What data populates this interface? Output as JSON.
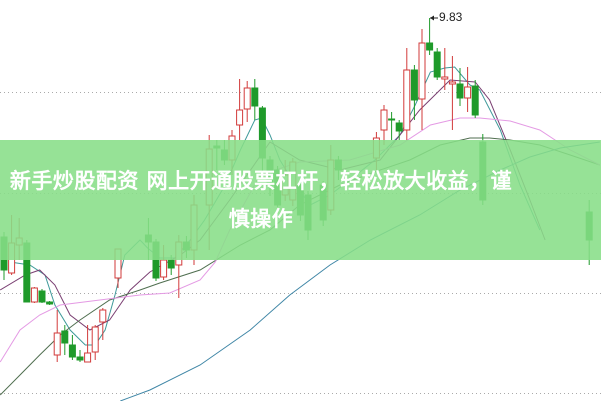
{
  "banner": {
    "text": "新手炒股配资 网上开通股票杠杆，轻松放大收益，谨慎操作"
  },
  "chart_data": {
    "type": "candlestick",
    "title": "",
    "xlabel": "",
    "ylabel": "",
    "grid": "horizontal dotted",
    "max_label": "9.83",
    "colors": {
      "up": "#d23a3a",
      "down": "#1f9a2a",
      "ma5": "#3f9a9a",
      "ma10": "#7a3f72",
      "ma20": "#4f6e4f",
      "ma30": "#e49ae4",
      "ma60": "#3f86a6",
      "banner": "#88de88"
    },
    "candles_ohlc": [
      [
        0,
        7.64,
        7.69,
        7.21,
        7.31
      ],
      [
        1,
        7.28,
        7.86,
        7.26,
        7.58
      ],
      [
        2,
        7.56,
        7.83,
        7.41,
        7.63
      ],
      [
        3,
        7.58,
        7.61,
        6.99,
        6.99
      ],
      [
        4,
        6.99,
        7.14,
        6.98,
        7.13
      ],
      [
        5,
        7.1,
        7.12,
        6.98,
        6.99
      ],
      [
        6,
        6.99,
        7.0,
        6.96,
        6.97
      ],
      [
        7,
        6.46,
        6.91,
        6.39,
        6.68
      ],
      [
        8,
        6.7,
        6.76,
        6.46,
        6.58
      ],
      [
        9,
        6.56,
        6.66,
        6.41,
        6.44
      ],
      [
        10,
        6.44,
        6.51,
        6.39,
        6.41
      ],
      [
        11,
        6.39,
        6.76,
        6.39,
        6.48
      ],
      [
        12,
        6.49,
        6.76,
        6.41,
        6.74
      ],
      [
        13,
        6.79,
        6.93,
        6.61,
        6.91
      ],
      [
        15,
        7.23,
        7.52,
        7.13,
        7.52
      ],
      [
        19,
        7.66,
        7.83,
        7.41,
        7.59
      ],
      [
        20,
        7.59,
        7.62,
        7.2,
        7.23
      ],
      [
        21,
        7.24,
        7.56,
        7.21,
        7.41
      ],
      [
        22,
        7.41,
        7.46,
        7.26,
        7.33
      ],
      [
        23,
        7.36,
        7.66,
        7.03,
        7.59
      ],
      [
        24,
        7.59,
        7.65,
        7.43,
        7.51
      ],
      [
        25,
        7.51,
        8.06,
        7.36,
        7.96
      ],
      [
        27,
        7.96,
        8.66,
        7.51,
        8.52
      ],
      [
        28,
        8.55,
        8.61,
        8.31,
        8.53
      ],
      [
        29,
        8.51,
        8.61,
        8.36,
        8.41
      ],
      [
        30,
        8.41,
        8.71,
        8.26,
        8.65
      ],
      [
        31,
        8.76,
        9.22,
        8.61,
        8.91
      ],
      [
        32,
        8.92,
        9.2,
        8.79,
        9.13
      ],
      [
        33,
        9.13,
        9.22,
        8.81,
        8.95
      ],
      [
        34,
        8.93,
        8.95,
        8.26,
        8.43
      ],
      [
        35,
        8.41,
        8.45,
        8.05,
        8.16
      ],
      [
        36,
        8.31,
        8.35,
        7.9,
        7.96
      ],
      [
        37,
        8.06,
        8.41,
        8.0,
        8.26
      ],
      [
        38,
        8.01,
        8.43,
        7.95,
        8.39
      ],
      [
        39,
        8.16,
        8.26,
        7.8,
        7.86
      ],
      [
        40,
        8.06,
        8.1,
        7.61,
        7.71
      ],
      [
        42,
        8.16,
        8.2,
        7.75,
        7.81
      ],
      [
        43,
        7.91,
        8.56,
        7.86,
        8.41
      ],
      [
        44,
        8.41,
        8.45,
        8.21,
        8.31
      ],
      [
        49,
        8.43,
        8.69,
        8.31,
        8.63
      ],
      [
        50,
        8.71,
        8.96,
        8.56,
        8.91
      ],
      [
        51,
        8.82,
        8.89,
        8.61,
        8.81
      ],
      [
        52,
        8.78,
        8.81,
        8.61,
        8.7
      ],
      [
        53,
        8.71,
        9.53,
        8.61,
        9.31
      ],
      [
        54,
        9.31,
        9.36,
        8.81,
        9.01
      ],
      [
        55,
        9.02,
        9.72,
        8.71,
        9.58
      ],
      [
        56,
        9.58,
        9.83,
        9.46,
        9.51
      ],
      [
        57,
        9.49,
        9.53,
        9.21,
        9.24
      ],
      [
        58,
        9.22,
        9.53,
        9.11,
        9.24
      ],
      [
        59,
        9.17,
        9.45,
        8.71,
        9.19
      ],
      [
        60,
        9.17,
        9.33,
        8.95,
        9.03
      ],
      [
        61,
        9.03,
        9.34,
        8.89,
        9.14
      ],
      [
        62,
        9.15,
        9.21,
        8.83,
        8.86
      ],
      [
        63,
        8.59,
        8.67,
        7.96,
        8.01
      ],
      [
        77,
        7.89,
        8.01,
        7.36,
        7.61
      ]
    ],
    "moving_averages": [
      {
        "key": "ma5",
        "points": [
          [
            0.8,
            7.39
          ],
          [
            3.4,
            7.36
          ],
          [
            5.4,
            7.26
          ],
          [
            6.7,
            6.96
          ],
          [
            8.7,
            6.71
          ],
          [
            10.7,
            6.56
          ],
          [
            12,
            6.56
          ],
          [
            13.3,
            6.71
          ],
          [
            14.6,
            7.06
          ],
          [
            15.9,
            7.46
          ],
          [
            17.9,
            7.61
          ],
          [
            18.9,
            7.53
          ],
          [
            20.5,
            7.43
          ],
          [
            22.5,
            7.43
          ],
          [
            24.5,
            7.61
          ],
          [
            26.4,
            7.81
          ],
          [
            29.1,
            8.16
          ],
          [
            31.1,
            8.51
          ],
          [
            33,
            8.81
          ],
          [
            33.9,
            8.83
          ],
          [
            35,
            8.66
          ],
          [
            36.3,
            8.41
          ],
          [
            38.3,
            8.16
          ],
          [
            40.3,
            7.96
          ],
          [
            42.9,
            8.06
          ],
          [
            45.5,
            8.21
          ],
          [
            48.8,
            8.41
          ],
          [
            52.1,
            8.66
          ],
          [
            54.1,
            8.96
          ],
          [
            56.1,
            9.29
          ],
          [
            58,
            9.33
          ],
          [
            59.3,
            9.34
          ],
          [
            61.3,
            9.16
          ],
          [
            62.6,
            9.11
          ],
          [
            65.3,
            8.71
          ],
          [
            67.9,
            8.16
          ],
          [
            70.5,
            7.71
          ]
        ]
      },
      {
        "key": "ma10",
        "points": [
          [
            -0.5,
            7.11
          ],
          [
            2.8,
            7.26
          ],
          [
            4.7,
            7.31
          ],
          [
            6.7,
            7.16
          ],
          [
            8.7,
            6.86
          ],
          [
            11.3,
            6.71
          ],
          [
            13.9,
            6.81
          ],
          [
            16.6,
            7.11
          ],
          [
            19.2,
            7.29
          ],
          [
            23.2,
            7.46
          ],
          [
            25.8,
            7.61
          ],
          [
            29.7,
            8.01
          ],
          [
            35,
            8.59
          ],
          [
            38.9,
            8.41
          ],
          [
            44.2,
            8.31
          ],
          [
            49.5,
            8.41
          ],
          [
            54.7,
            8.91
          ],
          [
            58.7,
            9.21
          ],
          [
            62,
            9.19
          ],
          [
            63.9,
            9.01
          ],
          [
            66.6,
            8.51
          ],
          [
            69.2,
            8.01
          ],
          [
            71.2,
            7.61
          ]
        ]
      },
      {
        "key": "ma20",
        "points": [
          [
            -0.5,
            6.06
          ],
          [
            2.1,
            6.26
          ],
          [
            4.7,
            6.46
          ],
          [
            7.4,
            6.66
          ],
          [
            10,
            6.81
          ],
          [
            13.9,
            7.01
          ],
          [
            17.9,
            7.11
          ],
          [
            20.5,
            7.18
          ],
          [
            25.8,
            7.31
          ],
          [
            31.1,
            7.56
          ],
          [
            35,
            7.71
          ],
          [
            38.9,
            7.96
          ],
          [
            44.2,
            8.16
          ],
          [
            49.5,
            8.31
          ],
          [
            53.4,
            8.41
          ],
          [
            57.4,
            8.56
          ],
          [
            61.3,
            8.63
          ],
          [
            63.9,
            8.63
          ],
          [
            66.6,
            8.61
          ],
          [
            70.5,
            8.56
          ],
          [
            74.5,
            8.46
          ],
          [
            78.4,
            8.36
          ]
        ]
      },
      {
        "key": "ma30",
        "points": [
          [
            -0.5,
            6.39
          ],
          [
            2.1,
            6.71
          ],
          [
            4.7,
            6.86
          ],
          [
            7.4,
            6.96
          ],
          [
            12.6,
            7.01
          ],
          [
            17.9,
            7.06
          ],
          [
            21.8,
            7.08
          ],
          [
            25.8,
            7.21
          ],
          [
            27.8,
            7.39
          ],
          [
            29.7,
            7.71
          ],
          [
            33.7,
            8.26
          ],
          [
            38.9,
            8.39
          ],
          [
            45.5,
            8.41
          ],
          [
            52.1,
            8.56
          ],
          [
            56.1,
            8.76
          ],
          [
            60,
            8.83
          ],
          [
            62.6,
            8.83
          ],
          [
            66.6,
            8.8
          ],
          [
            70.5,
            8.71
          ],
          [
            74.5,
            8.51
          ],
          [
            78.4,
            8.36
          ]
        ]
      },
      {
        "key": "ma60",
        "points": [
          [
            15.3,
            6.0
          ],
          [
            19.2,
            6.11
          ],
          [
            25.8,
            6.36
          ],
          [
            32.4,
            6.71
          ],
          [
            37.6,
            7.06
          ],
          [
            42.9,
            7.36
          ],
          [
            48.2,
            7.61
          ],
          [
            54.7,
            7.86
          ],
          [
            60,
            8.11
          ],
          [
            65.3,
            8.31
          ],
          [
            69.2,
            8.44
          ],
          [
            73.2,
            8.53
          ],
          [
            78.4,
            8.59
          ]
        ]
      }
    ]
  }
}
